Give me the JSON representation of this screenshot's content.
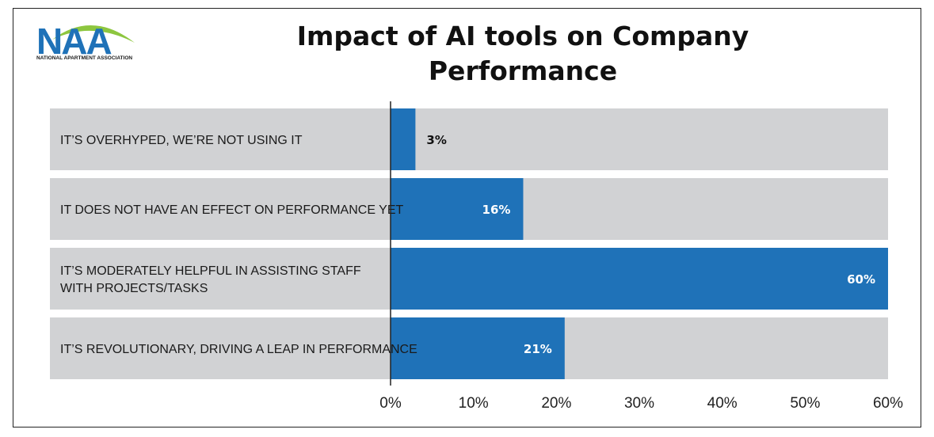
{
  "logo": {
    "letters": "NAA",
    "subtitle": "NATIONAL APARTMENT ASSOCIATION",
    "colors": {
      "blue": "#1f72b8",
      "green": "#8dc63f"
    }
  },
  "chart_data": {
    "type": "bar",
    "orientation": "horizontal",
    "title": "Impact of AI tools on Company Performance",
    "title_lines": [
      "Impact of AI tools on Company",
      "Performance"
    ],
    "categories": [
      "IT'S OVERHYPED, WE'RE NOT USING IT",
      "IT DOES NOT HAVE AN EFFECT ON PERFORMANCE YET",
      "IT'S MODERATELY HELPFUL IN ASSISTING STAFF WITH PROJECTS/TASKS",
      "IT'S REVOLUTIONARY, DRIVING A LEAP IN PERFORMANCE"
    ],
    "category_lines": [
      [
        "IT’S OVERHYPED, WE’RE NOT USING IT"
      ],
      [
        "IT DOES NOT HAVE AN EFFECT ON PERFORMANCE YET"
      ],
      [
        "IT’S MODERATELY HELPFUL IN ASSISTING STAFF",
        "WITH PROJECTS/TASKS"
      ],
      [
        "IT’S REVOLUTIONARY, DRIVING A LEAP IN PERFORMANCE"
      ]
    ],
    "values": [
      3,
      16,
      60,
      21
    ],
    "value_labels": [
      "3%",
      "16%",
      "60%",
      "21%"
    ],
    "xlim": [
      0,
      60
    ],
    "x_ticks": [
      0,
      10,
      20,
      30,
      40,
      50,
      60
    ],
    "x_tick_labels": [
      "0%",
      "10%",
      "20%",
      "30%",
      "40%",
      "50%",
      "60%"
    ],
    "grid": false,
    "legend": "none",
    "colors": {
      "bar": "#1f72b8",
      "row_background": "#d1d2d4",
      "axis": "#222222"
    }
  }
}
